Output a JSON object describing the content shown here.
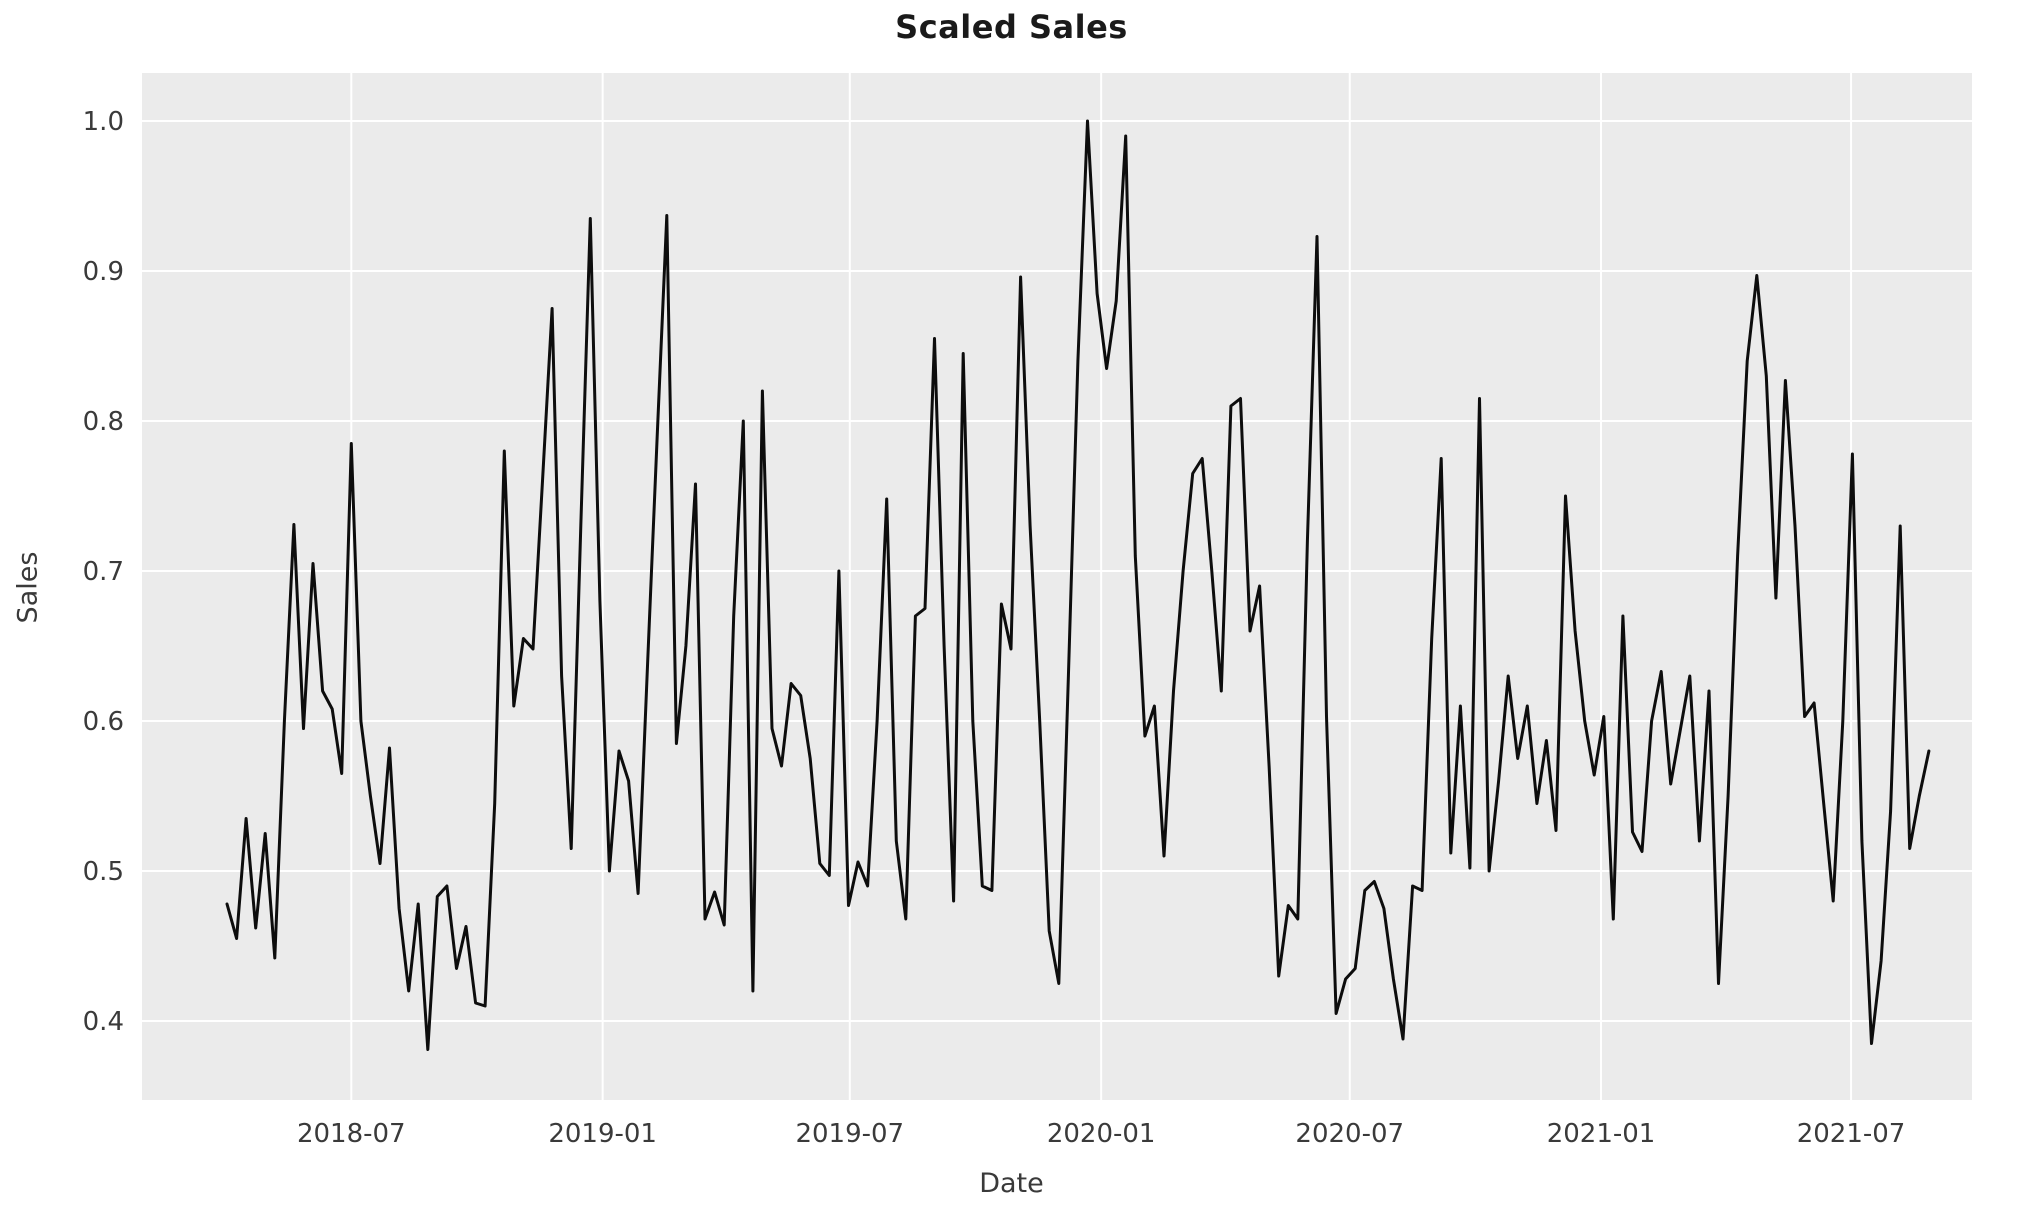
{
  "title": "Scaled Sales",
  "chart_data": {
    "type": "line",
    "title": "Scaled Sales",
    "xlabel": "Date",
    "ylabel": "Sales",
    "series_name": "Sales",
    "line_color": "#0d0d0d",
    "panel_color": "#ebebeb",
    "grid_color": "#ffffff",
    "grid_on": true,
    "legend_position": "none",
    "ylim": [
      0.3473,
      1.032
    ],
    "yticks": [
      {
        "label": "1.0",
        "value": 1.0
      },
      {
        "label": "0.9",
        "value": 0.9
      },
      {
        "label": "0.8",
        "value": 0.8
      },
      {
        "label": "0.7",
        "value": 0.7
      },
      {
        "label": "0.6",
        "value": 0.6
      },
      {
        "label": "0.5",
        "value": 0.5
      },
      {
        "label": "0.4",
        "value": 0.4
      }
    ],
    "xticks": [
      {
        "label": "2018-07",
        "week": 13.0
      },
      {
        "label": "2019-01",
        "week": 39.29
      },
      {
        "label": "2019-07",
        "week": 65.14
      },
      {
        "label": "2020-01",
        "week": 91.43
      },
      {
        "label": "2020-07",
        "week": 117.43
      },
      {
        "label": "2021-01",
        "week": 143.71
      },
      {
        "label": "2021-07",
        "week": 169.86
      }
    ],
    "frequency": "weekly",
    "x": [
      "2018-04-01",
      "2018-04-08",
      "2018-04-15",
      "2018-04-22",
      "2018-04-29",
      "2018-05-06",
      "2018-05-13",
      "2018-05-20",
      "2018-05-27",
      "2018-06-03",
      "2018-06-10",
      "2018-06-17",
      "2018-06-24",
      "2018-07-01",
      "2018-07-08",
      "2018-07-15",
      "2018-07-22",
      "2018-07-29",
      "2018-08-05",
      "2018-08-12",
      "2018-08-19",
      "2018-08-26",
      "2018-09-02",
      "2018-09-09",
      "2018-09-16",
      "2018-09-23",
      "2018-09-30",
      "2018-10-07",
      "2018-10-14",
      "2018-10-21",
      "2018-10-28",
      "2018-11-04",
      "2018-11-11",
      "2018-11-18",
      "2018-11-25",
      "2018-12-02",
      "2018-12-09",
      "2018-12-16",
      "2018-12-23",
      "2018-12-30",
      "2019-01-06",
      "2019-01-13",
      "2019-01-20",
      "2019-01-27",
      "2019-02-03",
      "2019-02-10",
      "2019-02-17",
      "2019-02-24",
      "2019-03-03",
      "2019-03-10",
      "2019-03-17",
      "2019-03-24",
      "2019-03-31",
      "2019-04-07",
      "2019-04-14",
      "2019-04-21",
      "2019-04-28",
      "2019-05-05",
      "2019-05-12",
      "2019-05-19",
      "2019-05-26",
      "2019-06-02",
      "2019-06-09",
      "2019-06-16",
      "2019-06-23",
      "2019-06-30",
      "2019-07-07",
      "2019-07-14",
      "2019-07-21",
      "2019-07-28",
      "2019-08-04",
      "2019-08-11",
      "2019-08-18",
      "2019-08-25",
      "2019-09-01",
      "2019-09-08",
      "2019-09-15",
      "2019-09-22",
      "2019-09-29",
      "2019-10-06",
      "2019-10-13",
      "2019-10-20",
      "2019-10-27",
      "2019-11-03",
      "2019-11-10",
      "2019-11-17",
      "2019-11-24",
      "2019-12-01",
      "2019-12-08",
      "2019-12-15",
      "2019-12-22",
      "2019-12-29",
      "2020-01-05",
      "2020-01-12",
      "2020-01-19",
      "2020-01-26",
      "2020-02-02",
      "2020-02-09",
      "2020-02-16",
      "2020-02-23",
      "2020-03-01",
      "2020-03-08",
      "2020-03-15",
      "2020-03-22",
      "2020-03-29",
      "2020-04-05",
      "2020-04-12",
      "2020-04-19",
      "2020-04-26",
      "2020-05-03",
      "2020-05-10",
      "2020-05-17",
      "2020-05-24",
      "2020-05-31",
      "2020-06-07",
      "2020-06-14",
      "2020-06-21",
      "2020-06-28",
      "2020-07-05",
      "2020-07-12",
      "2020-07-19",
      "2020-07-26",
      "2020-08-02",
      "2020-08-09",
      "2020-08-16",
      "2020-08-23",
      "2020-08-30",
      "2020-09-06",
      "2020-09-13",
      "2020-09-20",
      "2020-09-27",
      "2020-10-04",
      "2020-10-11",
      "2020-10-18",
      "2020-10-25",
      "2020-11-01",
      "2020-11-08",
      "2020-11-15",
      "2020-11-22",
      "2020-11-29",
      "2020-12-06",
      "2020-12-13",
      "2020-12-20",
      "2020-12-27",
      "2021-01-03",
      "2021-01-10",
      "2021-01-17",
      "2021-01-24",
      "2021-01-31",
      "2021-02-07",
      "2021-02-14",
      "2021-02-21",
      "2021-02-28",
      "2021-03-07",
      "2021-03-14",
      "2021-03-21",
      "2021-03-28",
      "2021-04-04",
      "2021-04-11",
      "2021-04-18",
      "2021-04-25",
      "2021-05-02",
      "2021-05-09",
      "2021-05-16",
      "2021-05-23",
      "2021-05-30",
      "2021-06-06",
      "2021-06-13",
      "2021-06-20",
      "2021-06-27",
      "2021-07-04",
      "2021-07-11",
      "2021-07-18",
      "2021-07-25",
      "2021-08-01",
      "2021-08-08",
      "2021-08-15",
      "2021-08-22",
      "2021-08-29"
    ],
    "values": [
      0.478,
      0.455,
      0.535,
      0.462,
      0.525,
      0.442,
      0.6,
      0.731,
      0.595,
      0.705,
      0.62,
      0.608,
      0.565,
      0.785,
      0.6,
      0.55,
      0.505,
      0.582,
      0.475,
      0.42,
      0.478,
      0.381,
      0.483,
      0.49,
      0.435,
      0.463,
      0.412,
      0.41,
      0.545,
      0.78,
      0.61,
      0.655,
      0.648,
      0.76,
      0.875,
      0.63,
      0.515,
      0.73,
      0.935,
      0.68,
      0.5,
      0.58,
      0.56,
      0.485,
      0.64,
      0.79,
      0.937,
      0.585,
      0.65,
      0.758,
      0.468,
      0.486,
      0.464,
      0.67,
      0.8,
      0.42,
      0.82,
      0.595,
      0.57,
      0.625,
      0.617,
      0.575,
      0.505,
      0.497,
      0.7,
      0.477,
      0.506,
      0.49,
      0.6,
      0.748,
      0.52,
      0.468,
      0.67,
      0.675,
      0.855,
      0.65,
      0.48,
      0.845,
      0.6,
      0.49,
      0.487,
      0.678,
      0.648,
      0.896,
      0.73,
      0.6,
      0.46,
      0.425,
      0.63,
      0.84,
      1.0,
      0.885,
      0.835,
      0.88,
      0.99,
      0.71,
      0.59,
      0.61,
      0.51,
      0.62,
      0.7,
      0.765,
      0.775,
      0.7,
      0.62,
      0.81,
      0.815,
      0.66,
      0.69,
      0.57,
      0.43,
      0.477,
      0.468,
      0.72,
      0.923,
      0.603,
      0.405,
      0.428,
      0.435,
      0.487,
      0.493,
      0.475,
      0.428,
      0.388,
      0.49,
      0.487,
      0.655,
      0.775,
      0.512,
      0.61,
      0.502,
      0.815,
      0.5,
      0.56,
      0.63,
      0.575,
      0.61,
      0.545,
      0.587,
      0.527,
      0.75,
      0.66,
      0.6,
      0.564,
      0.603,
      0.468,
      0.67,
      0.526,
      0.513,
      0.6,
      0.633,
      0.558,
      0.594,
      0.63,
      0.52,
      0.62,
      0.425,
      0.55,
      0.71,
      0.84,
      0.897,
      0.83,
      0.682,
      0.827,
      0.73,
      0.603,
      0.612,
      0.545,
      0.48,
      0.6,
      0.778,
      0.52,
      0.385,
      0.44,
      0.54,
      0.73,
      0.515,
      0.55,
      0.58
    ]
  }
}
